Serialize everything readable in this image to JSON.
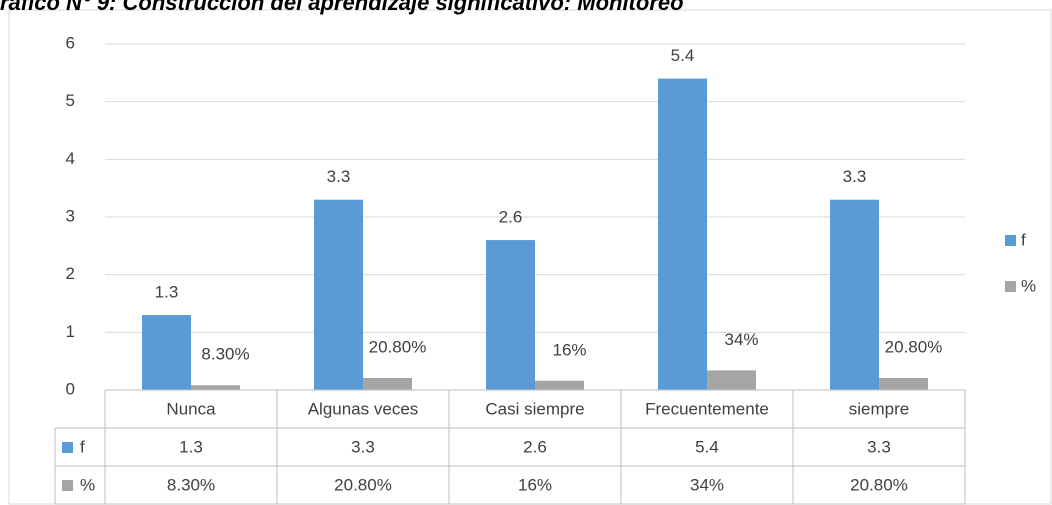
{
  "chart_data": {
    "type": "bar",
    "title": "ráfico N° 9: Construcción del aprendizaje significativo: Monitoreo",
    "categories": [
      "Nunca",
      "Algunas veces",
      "Casi siempre",
      "Frecuentemente",
      "siempre"
    ],
    "series": [
      {
        "name": "f",
        "color": "#5b9bd5",
        "values": [
          1.3,
          3.3,
          2.6,
          5.4,
          3.3
        ]
      },
      {
        "name": "%",
        "color": "#a5a5a5",
        "values": [
          0.083,
          0.208,
          0.16,
          0.34,
          0.208
        ],
        "value_labels": [
          "8.30%",
          "20.80%",
          "16%",
          "34%",
          "20.80%"
        ]
      }
    ],
    "ylim": [
      0,
      6
    ],
    "yticks": [
      0,
      1,
      2,
      3,
      4,
      5,
      6
    ],
    "grid": true,
    "legend": "right",
    "data_table": true
  }
}
